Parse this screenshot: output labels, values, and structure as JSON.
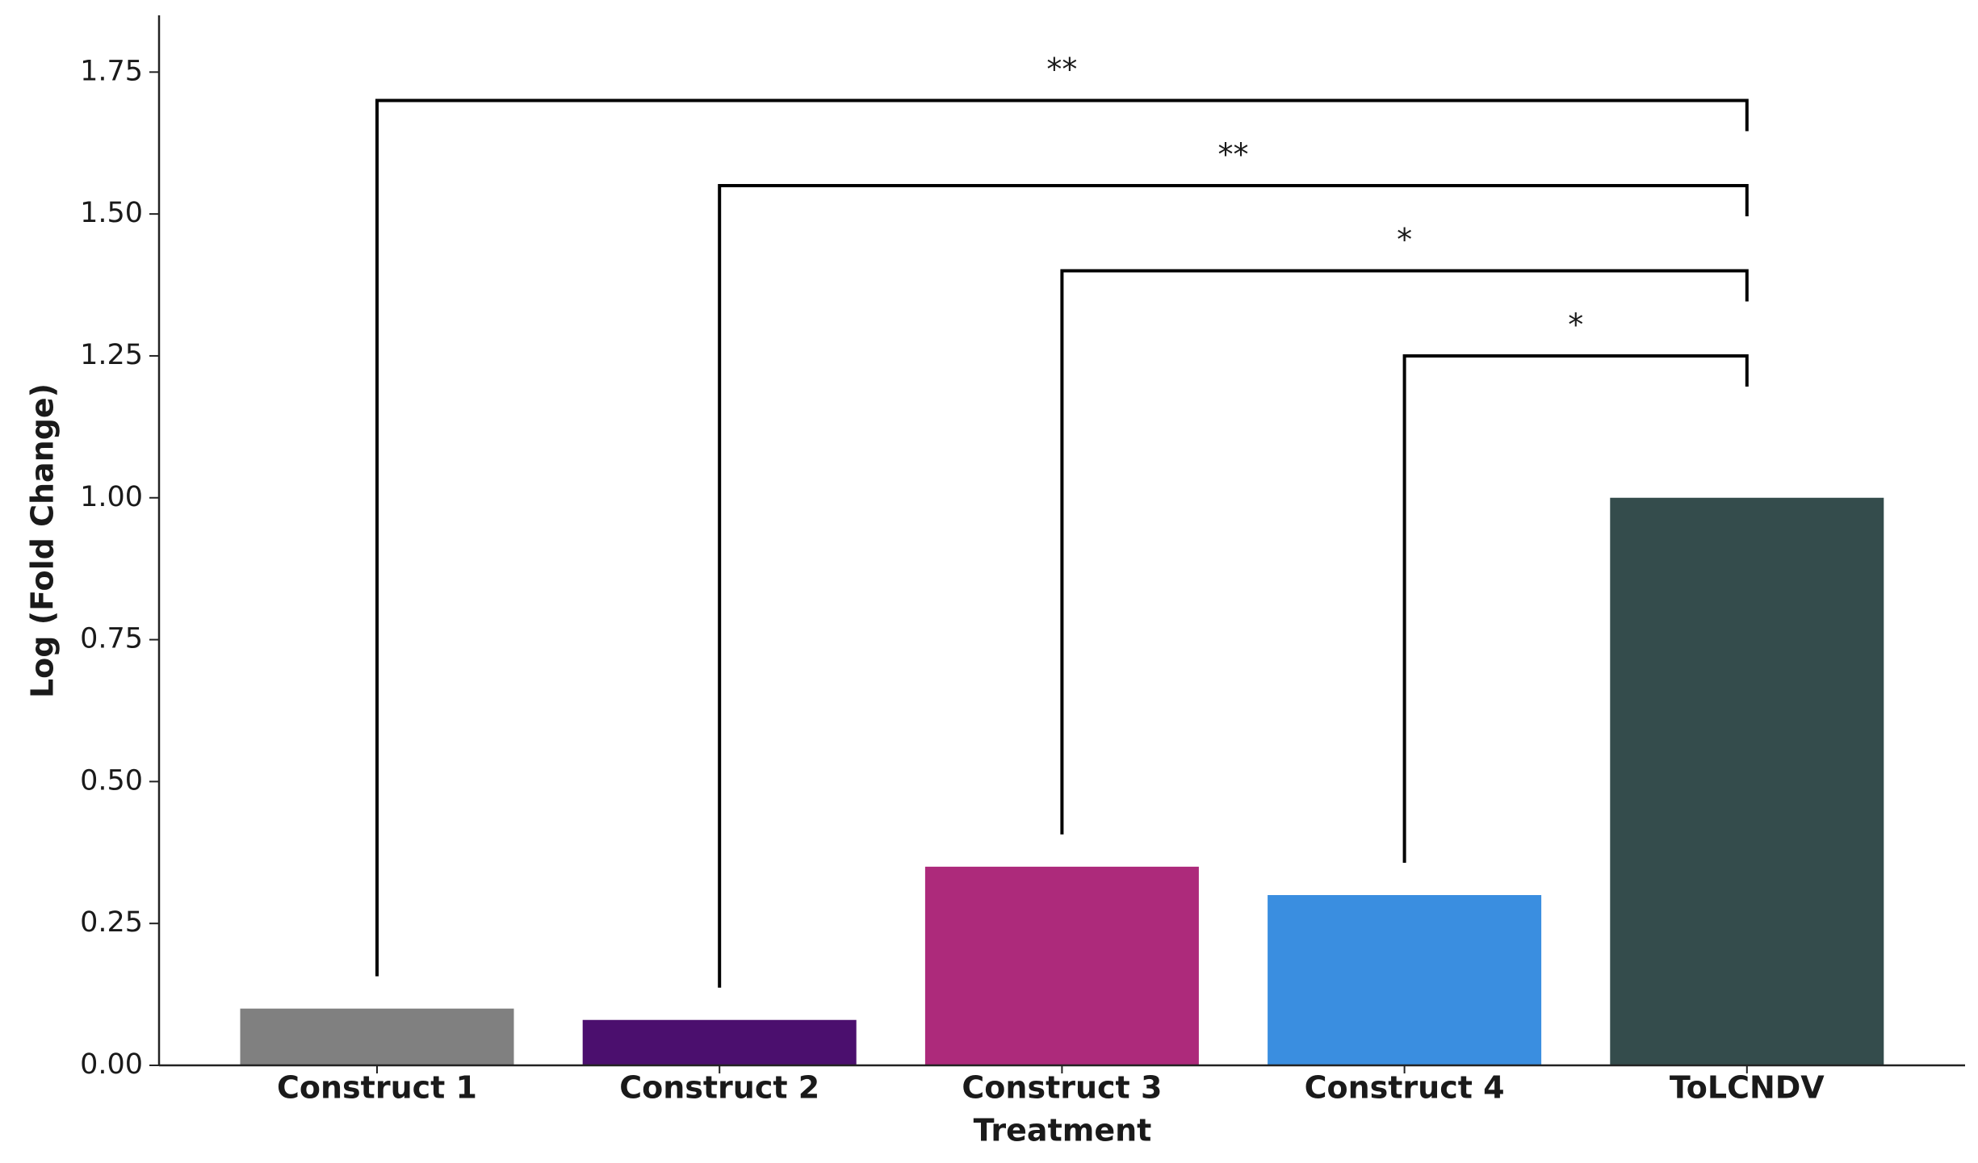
{
  "chart_data": {
    "type": "bar",
    "x_label": "Treatment",
    "y_label": "Log (Fold Change)",
    "categories": [
      "Construct 1",
      "Construct 2",
      "Construct 3",
      "Construct 4",
      "ToLCNDV"
    ],
    "values": [
      0.1,
      0.08,
      0.35,
      0.3,
      1.0
    ],
    "colors": [
      "#808080",
      "#4b0f6e",
      "#ad2a7b",
      "#3a8ee0",
      "#344c4c"
    ],
    "ylim": [
      0,
      1.85
    ],
    "yticks": [
      {
        "value": 0,
        "label": "0.00"
      },
      {
        "value": 0.25,
        "label": "0.25"
      },
      {
        "value": 0.5,
        "label": "0.50"
      },
      {
        "value": 0.75,
        "label": "0.75"
      },
      {
        "value": 1,
        "label": "1.00"
      },
      {
        "value": 1.25,
        "label": "1.25"
      },
      {
        "value": 1.5,
        "label": "1.50"
      },
      {
        "value": 1.75,
        "label": "1.75"
      }
    ],
    "annotations": [
      {
        "from": 0,
        "to": 4,
        "y": 1.7,
        "label": "**"
      },
      {
        "from": 1,
        "to": 4,
        "y": 1.55,
        "label": "**"
      },
      {
        "from": 2,
        "to": 4,
        "y": 1.4,
        "label": "*"
      },
      {
        "from": 3,
        "to": 4,
        "y": 1.25,
        "label": "*"
      }
    ]
  }
}
